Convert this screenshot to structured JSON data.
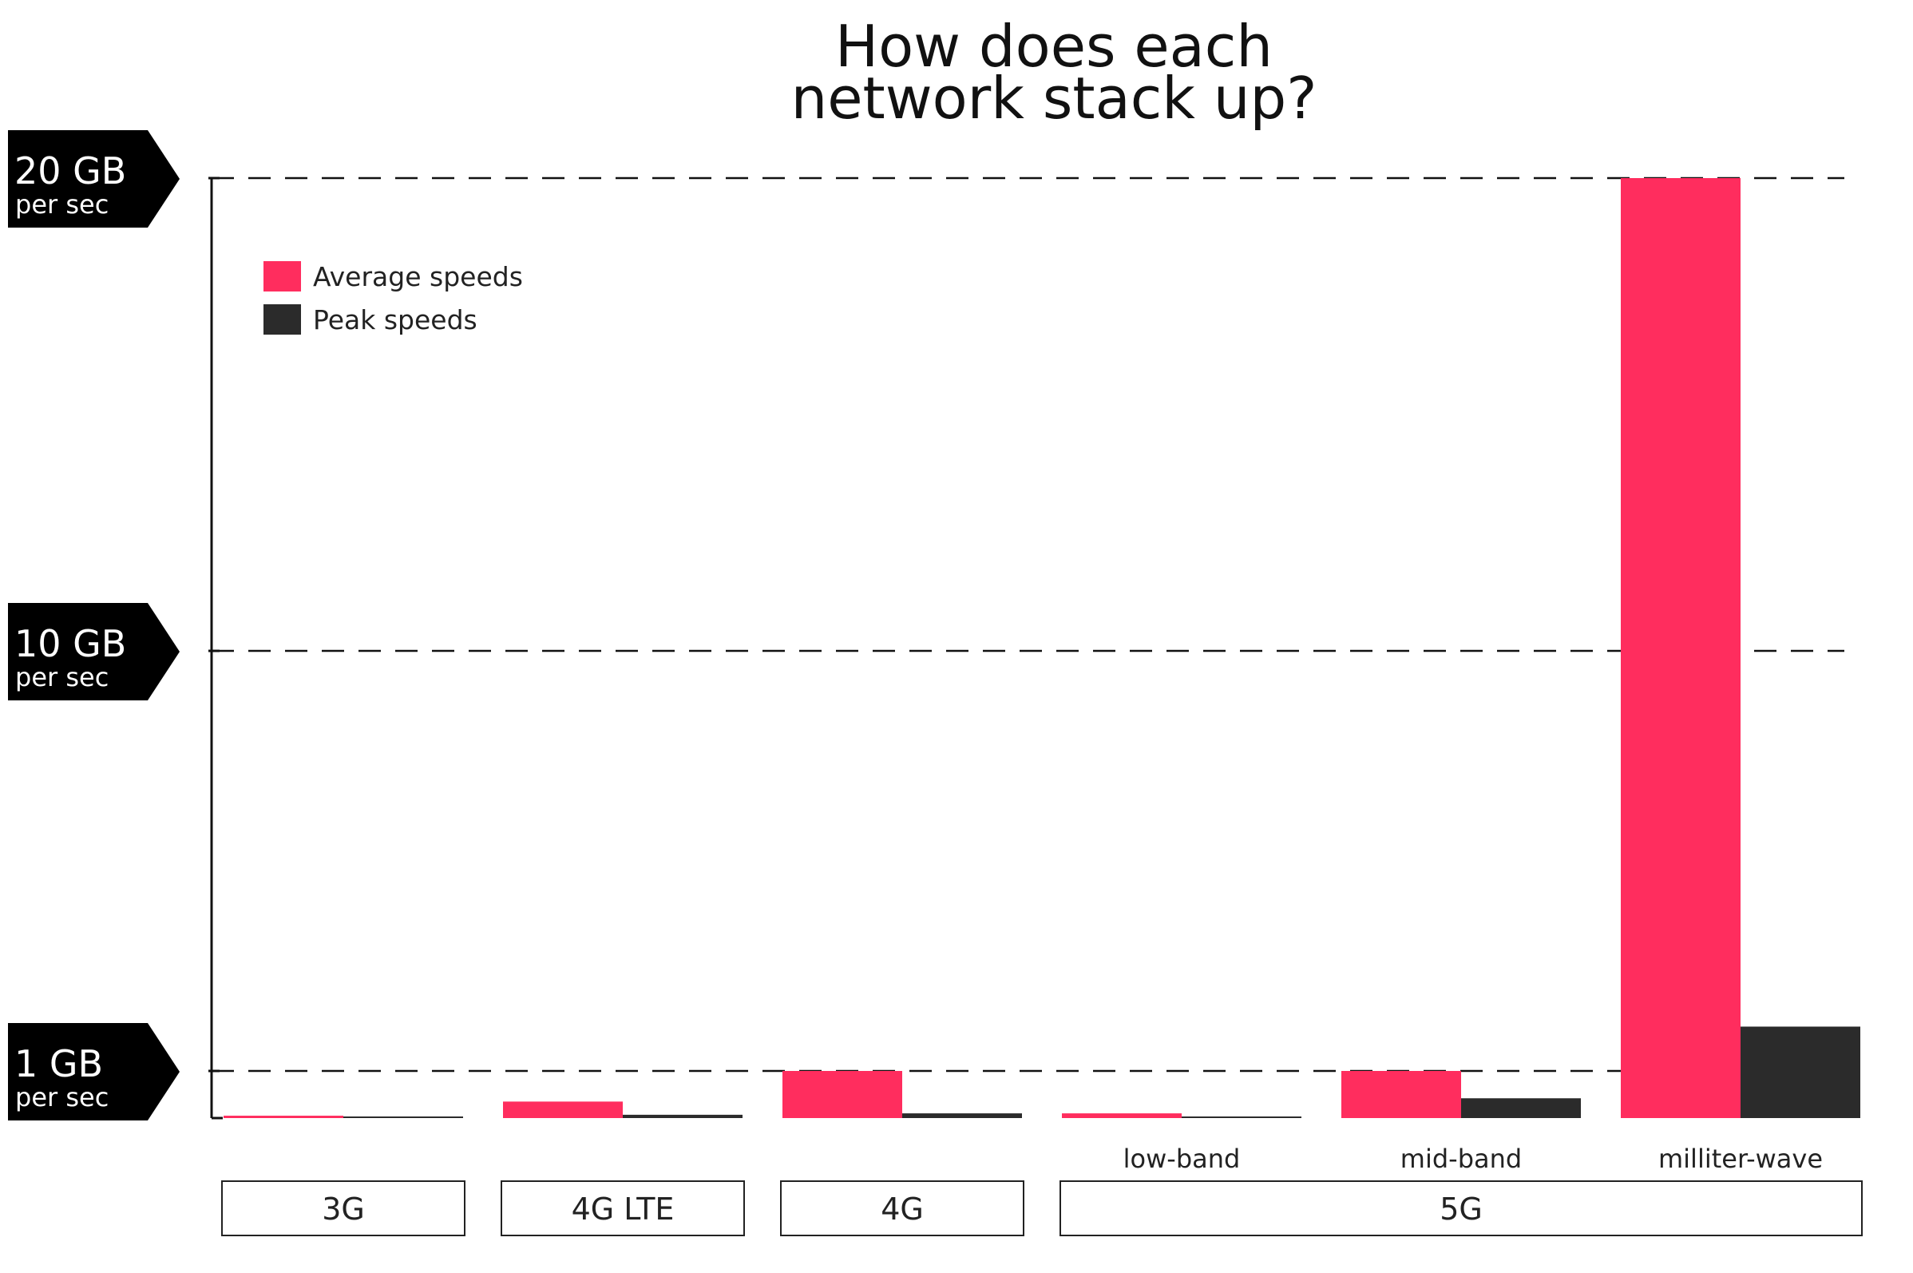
{
  "chart_data": {
    "type": "bar",
    "title_lines": [
      "How does each",
      "network stack up?"
    ],
    "y_tags": [
      {
        "main": "20 GB",
        "sub": "per sec",
        "value": 20
      },
      {
        "main": "10 GB",
        "sub": "per sec",
        "value": 10
      },
      {
        "main": "1 GB",
        "sub": "per sec",
        "value": 1
      }
    ],
    "ylim": [
      0,
      20
    ],
    "grid": "dashed at 1, 10, 20",
    "legend_position": "top-left",
    "series": [
      {
        "name": "Average speeds",
        "color": "#ff2d5e",
        "values": [
          0.05,
          0.35,
          1.0,
          0.1,
          1.0,
          20.0
        ]
      },
      {
        "name": "Peak speeds",
        "color": "#2b2b2b",
        "values": [
          0.03,
          0.07,
          0.1,
          0.02,
          0.42,
          1.95
        ]
      }
    ],
    "categories": [
      {
        "group": "3G",
        "sub": ""
      },
      {
        "group": "4G LTE",
        "sub": ""
      },
      {
        "group": "4G",
        "sub": ""
      },
      {
        "group": "5G",
        "sub": "low-band"
      },
      {
        "group": "5G",
        "sub": "mid-band"
      },
      {
        "group": "5G",
        "sub": "milliter-wave"
      }
    ],
    "groups": [
      "3G",
      "4G LTE",
      "4G",
      "5G"
    ]
  }
}
